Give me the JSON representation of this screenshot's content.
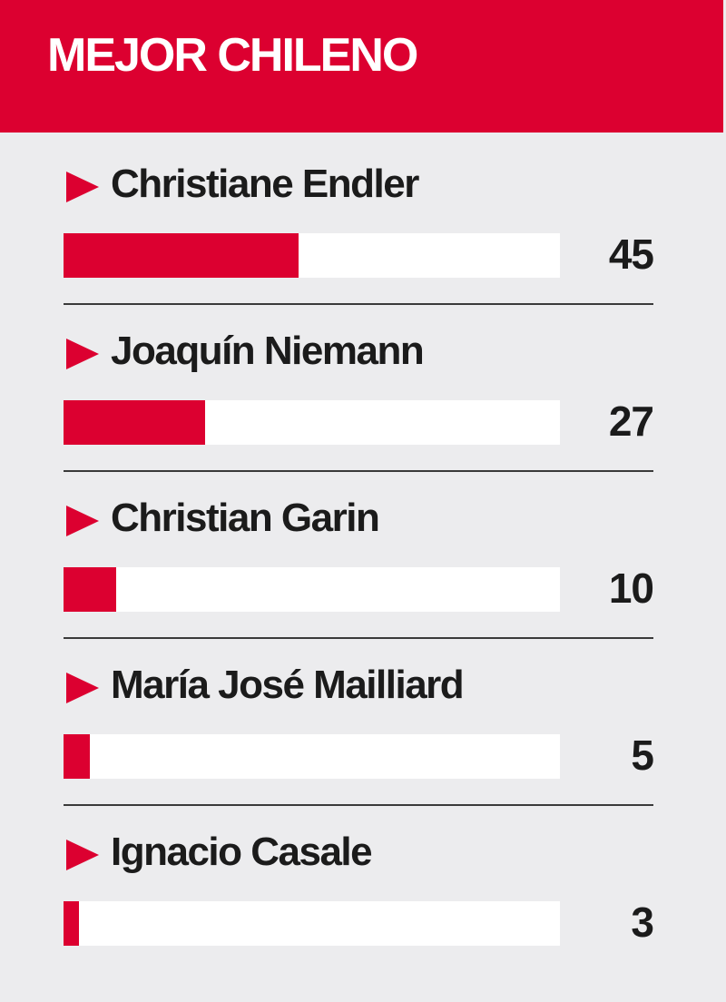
{
  "header": {
    "title": "MEJOR CHILENO"
  },
  "colors": {
    "accent": "#dc0030",
    "background": "#ececee",
    "track": "#ffffff",
    "text": "#1b1b1b"
  },
  "chart_data": {
    "type": "bar",
    "orientation": "horizontal",
    "title": "MEJOR CHILENO",
    "categories": [
      "Christiane Endler",
      "Joaquín Niemann",
      "Christian Garin",
      "María José Mailliard",
      "Ignacio Casale"
    ],
    "values": [
      45,
      27,
      10,
      5,
      3
    ],
    "xlim": [
      0,
      95
    ],
    "grid": false,
    "legend": "none"
  },
  "rows": [
    {
      "name": "Christiane Endler",
      "value": "45"
    },
    {
      "name": "Joaquín Niemann",
      "value": "27"
    },
    {
      "name": "Christian Garin",
      "value": "10"
    },
    {
      "name": "María José Mailliard",
      "value": "5"
    },
    {
      "name": "Ignacio Casale",
      "value": "3"
    }
  ]
}
